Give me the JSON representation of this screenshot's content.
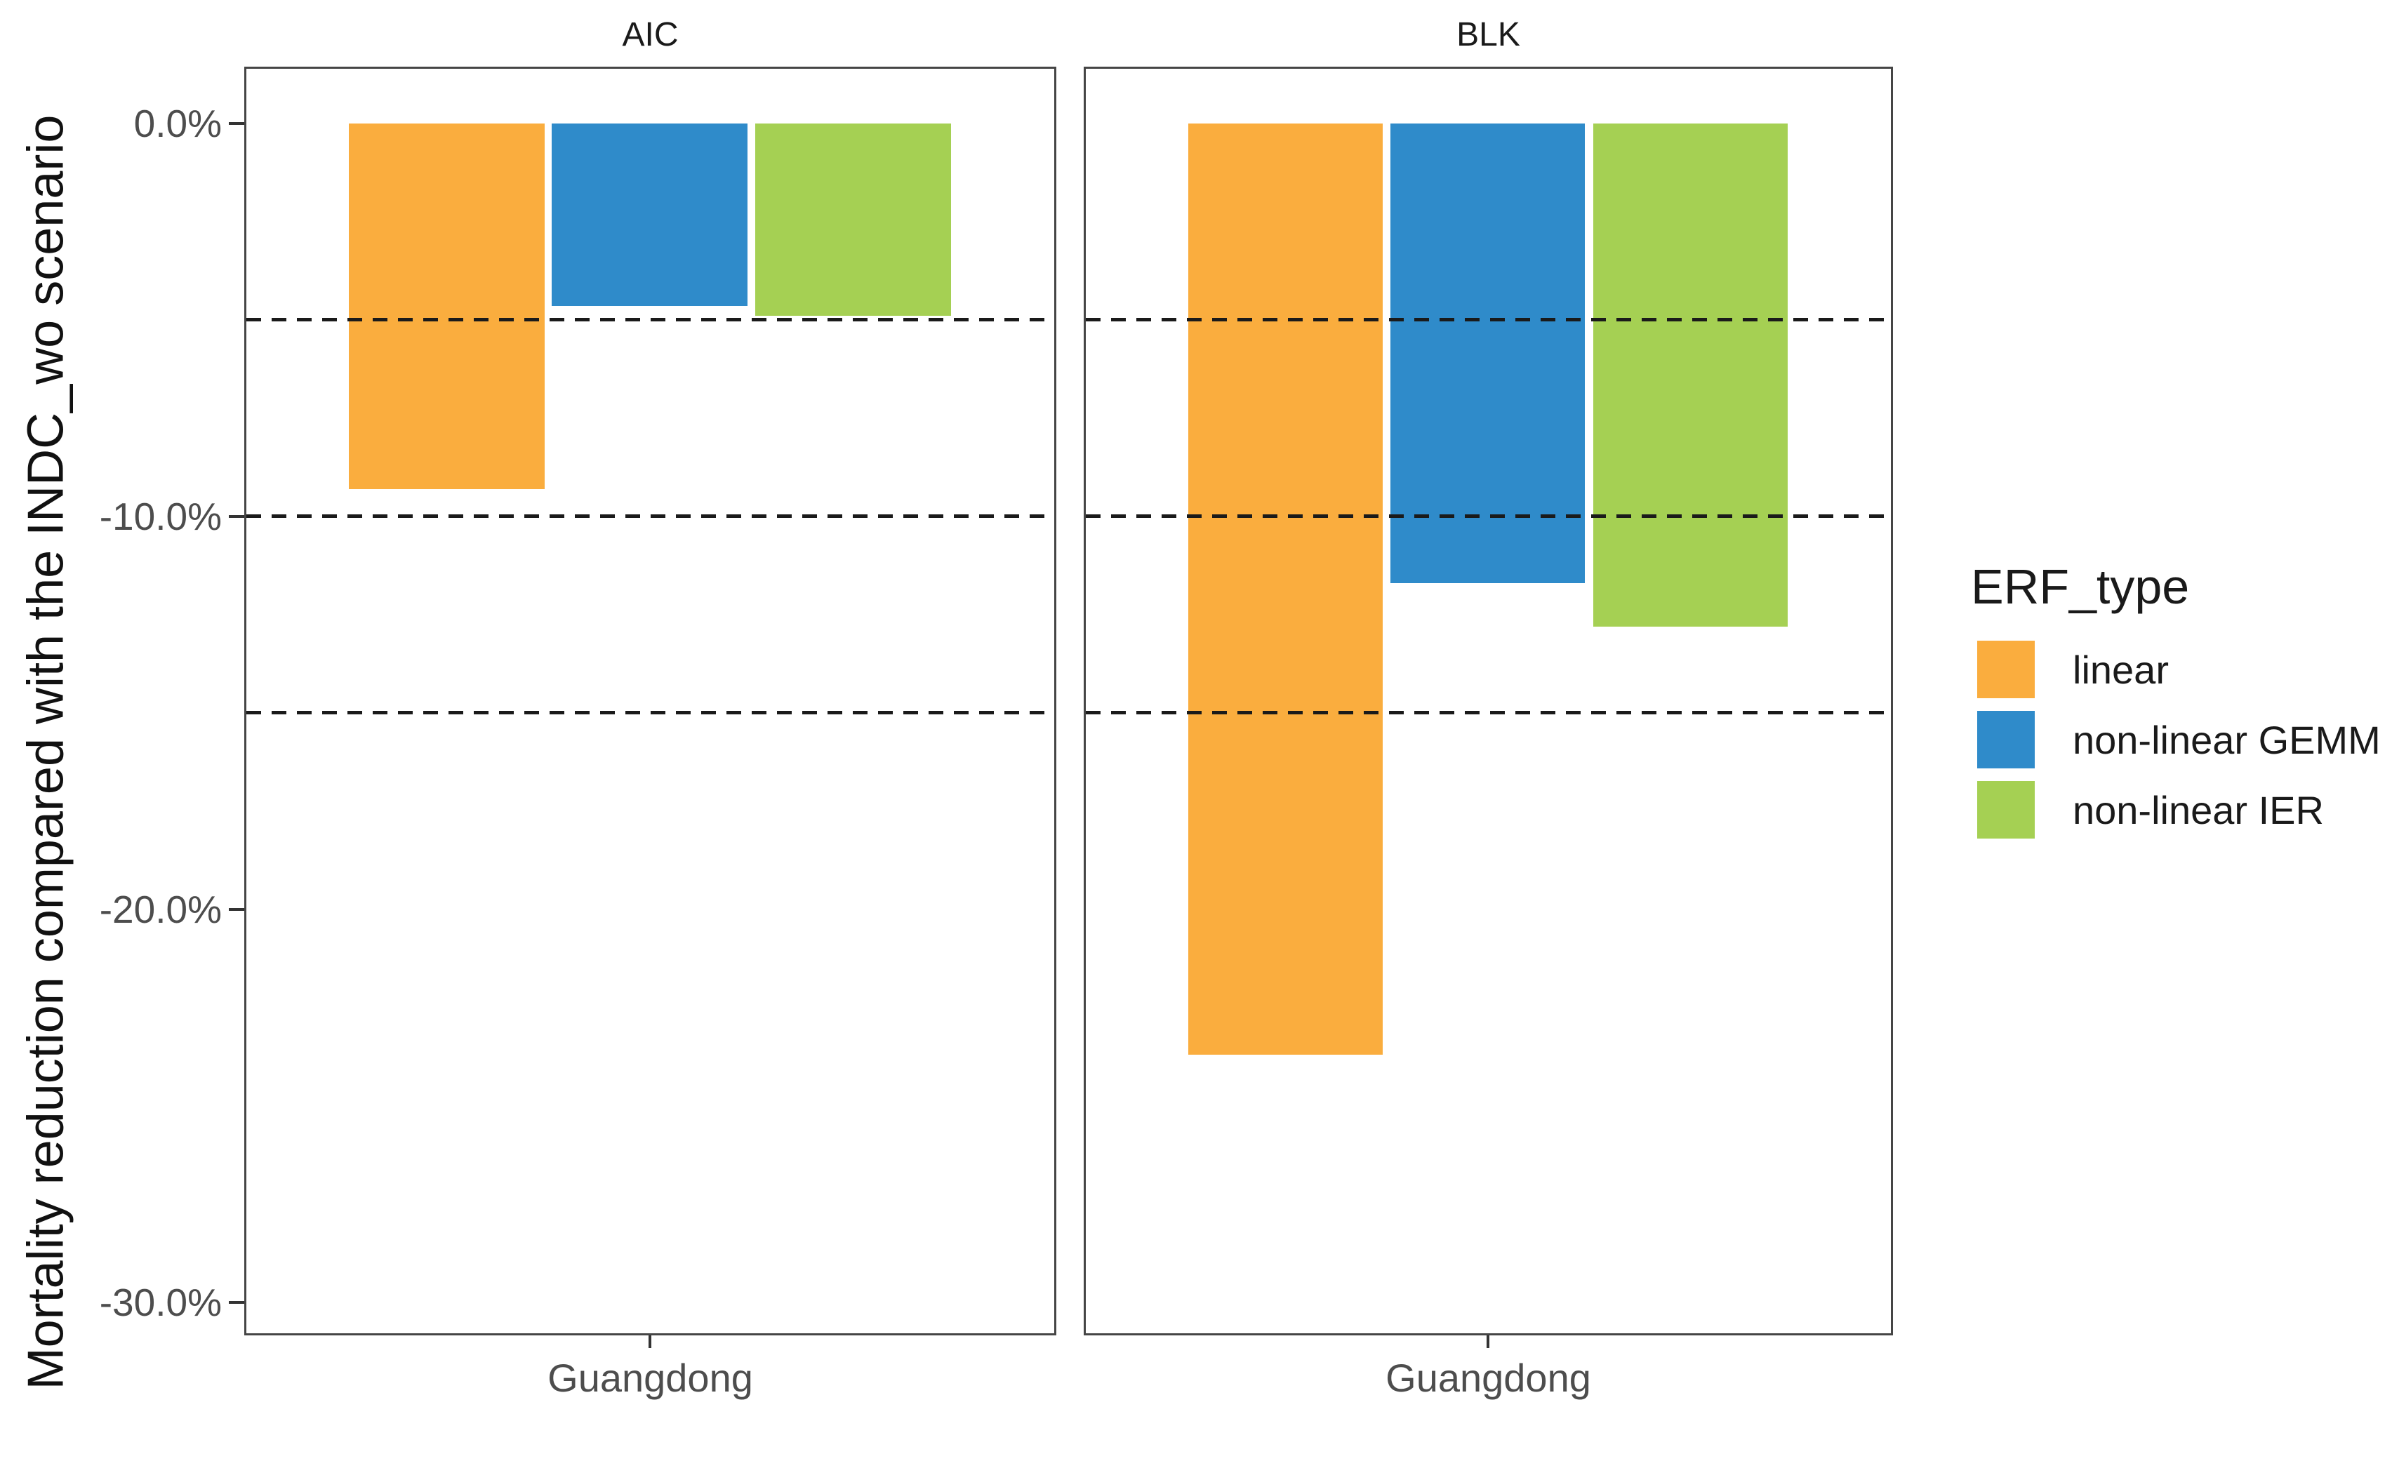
{
  "chart_data": {
    "type": "bar",
    "title": "",
    "xlabel": "",
    "ylabel": "Mortality reduction compared with the INDC_wo scenario",
    "unit": "percent",
    "facets": [
      {
        "label": "AIC",
        "category": "Guangdong",
        "values": [
          -9.3,
          -4.65,
          -4.9
        ]
      },
      {
        "label": "BLK",
        "category": "Guangdong",
        "values": [
          -23.7,
          -11.7,
          -12.8
        ]
      }
    ],
    "series": [
      {
        "name": "linear",
        "color": "#FAAD3E"
      },
      {
        "name": "non-linear GEMM",
        "color": "#2F8BCA"
      },
      {
        "name": "non-linear IER",
        "color": "#A5D053"
      }
    ],
    "ylim": [
      1.39,
      -30.79
    ],
    "yticks": [
      {
        "label": "0.0%",
        "value": 0
      },
      {
        "label": "-10.0%",
        "value": -10
      },
      {
        "label": "-20.0%",
        "value": -20
      },
      {
        "label": "-30.0%",
        "value": -30
      }
    ],
    "dashed_gridlines": [
      -5,
      -10,
      -15
    ],
    "grid": "dashed horizontal reference lines only",
    "legend_position": "right"
  },
  "legend": {
    "title": "ERF_type",
    "items": [
      {
        "label": "linear",
        "color": "#FAAD3E"
      },
      {
        "label": "non-linear GEMM",
        "color": "#2F8BCA"
      },
      {
        "label": "non-linear IER",
        "color": "#A5D053"
      }
    ]
  },
  "colors": {
    "panel_border": "#454545",
    "axis_text": "#4d4d4d",
    "gridline": "#1a1a1a",
    "tick_mark": "#333333"
  }
}
